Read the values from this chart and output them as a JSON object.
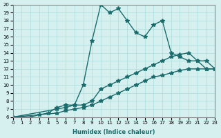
{
  "xlabel": "Humidex (Indice chaleur)",
  "ylabel": "",
  "xlim": [
    0,
    23
  ],
  "ylim": [
    6,
    20
  ],
  "xticks": [
    0,
    1,
    2,
    3,
    4,
    5,
    6,
    7,
    8,
    9,
    10,
    11,
    12,
    13,
    14,
    15,
    16,
    17,
    18,
    19,
    20,
    21,
    22,
    23
  ],
  "yticks": [
    6,
    7,
    8,
    9,
    10,
    11,
    12,
    13,
    14,
    15,
    16,
    17,
    18,
    19,
    20
  ],
  "bg_color": "#d6f0f0",
  "line_color": "#1a6b6b",
  "line1_x": [
    0,
    1,
    2,
    3,
    4,
    5,
    6,
    7,
    8,
    9,
    10,
    11,
    12,
    13,
    14,
    15,
    16,
    17,
    18,
    19,
    20,
    21,
    22,
    23
  ],
  "line1_y": [
    6,
    6,
    6,
    6.3,
    6.5,
    7.2,
    7.5,
    7.5,
    10,
    15.5,
    20,
    19,
    19.5,
    18,
    16.5,
    16,
    17.5,
    18,
    14,
    13.5,
    13,
    13,
    12,
    12
  ],
  "line2_x": [
    0,
    5,
    6,
    7,
    8,
    9,
    10,
    11,
    12,
    13,
    14,
    15,
    16,
    17,
    18,
    19,
    20,
    21,
    22,
    23
  ],
  "line2_y": [
    6,
    7,
    7.2,
    7.5,
    7.5,
    8,
    9.5,
    10,
    10.5,
    11,
    11.5,
    12,
    12.5,
    13,
    13.5,
    13.8,
    14,
    13,
    13,
    12
  ],
  "line3_x": [
    0,
    5,
    6,
    7,
    8,
    9,
    10,
    11,
    12,
    13,
    14,
    15,
    16,
    17,
    18,
    19,
    20,
    21,
    22,
    23
  ],
  "line3_y": [
    6,
    6.5,
    6.8,
    7,
    7.2,
    7.5,
    8,
    8.5,
    9,
    9.5,
    10,
    10.5,
    11,
    11.2,
    11.5,
    11.8,
    12,
    12,
    12,
    12
  ]
}
